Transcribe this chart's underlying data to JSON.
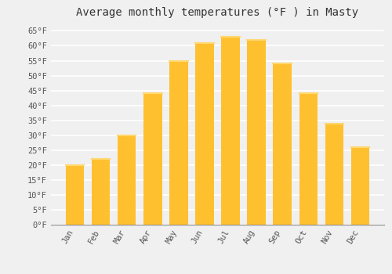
{
  "title": "Average monthly temperatures (°F ) in Masty",
  "months": [
    "Jan",
    "Feb",
    "Mar",
    "Apr",
    "May",
    "Jun",
    "Jul",
    "Aug",
    "Sep",
    "Oct",
    "Nov",
    "Dec"
  ],
  "values": [
    20,
    22,
    30,
    44,
    55,
    61,
    63,
    62,
    54,
    44,
    34,
    26
  ],
  "bar_color": "#FFC030",
  "bar_edge_color": "#FFB020",
  "background_color": "#F0F0F0",
  "grid_color": "#FFFFFF",
  "ylim": [
    0,
    68
  ],
  "yticks": [
    0,
    5,
    10,
    15,
    20,
    25,
    30,
    35,
    40,
    45,
    50,
    55,
    60,
    65
  ],
  "title_fontsize": 10,
  "tick_fontsize": 7.5,
  "font_family": "monospace",
  "bar_width": 0.7
}
